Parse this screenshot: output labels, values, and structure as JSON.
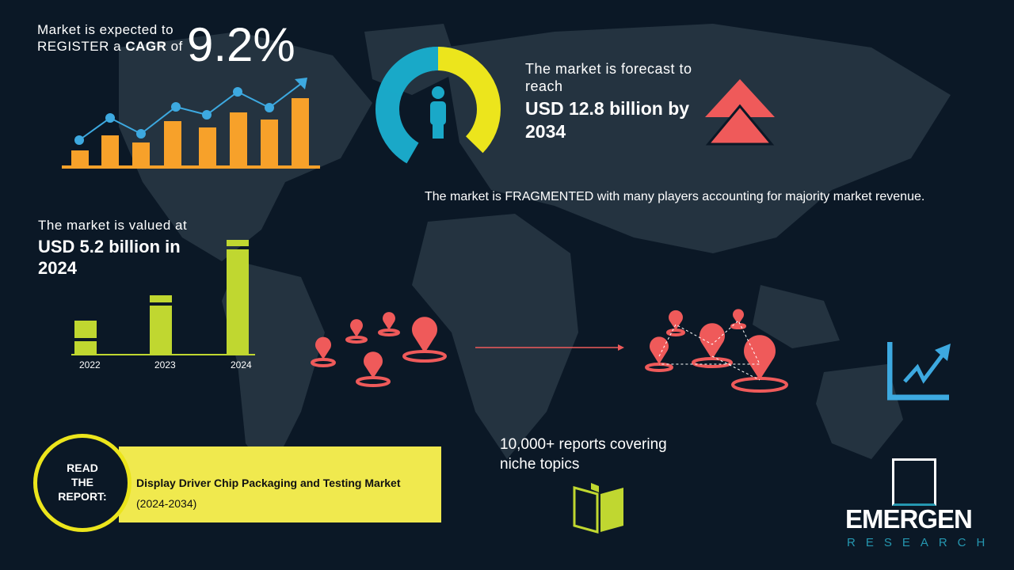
{
  "cagr": {
    "line1": "Market is expected to",
    "line2_pre": "REGISTER a ",
    "line2_bold": "CAGR",
    "line2_post": " of",
    "value": "9.2%"
  },
  "forecast": {
    "intro": "The market is forecast to reach",
    "value": "USD 12.8 billion by 2034"
  },
  "fragmented": {
    "text": "The market is FRAGMENTED with many players accounting for majority market revenue."
  },
  "valued": {
    "intro": "The market is valued at",
    "value": "USD 5.2 billion in 2024"
  },
  "bar_years": [
    "2022",
    "2023",
    "2024"
  ],
  "reports": {
    "text": "10,000+ reports covering niche topics",
    "icon": "open-book-icon"
  },
  "read_report": {
    "badge": [
      "READ",
      "THE",
      "REPORT:"
    ],
    "title": "Display Driver Chip Packaging and Testing Market",
    "years": "(2024-2034)"
  },
  "logo": {
    "name": "EMERGEN",
    "sub": "RESEARCH"
  },
  "colors": {
    "background": "#0b1826",
    "map": "#243340",
    "orange": "#f7a12a",
    "blue": "#3da9e0",
    "green": "#c0d730",
    "yellow": "#f0e94e",
    "donut_yellow": "#ece51c",
    "donut_teal": "#1aa8c8",
    "red": "#ef5a5a",
    "logo_teal": "#2597b0"
  }
}
